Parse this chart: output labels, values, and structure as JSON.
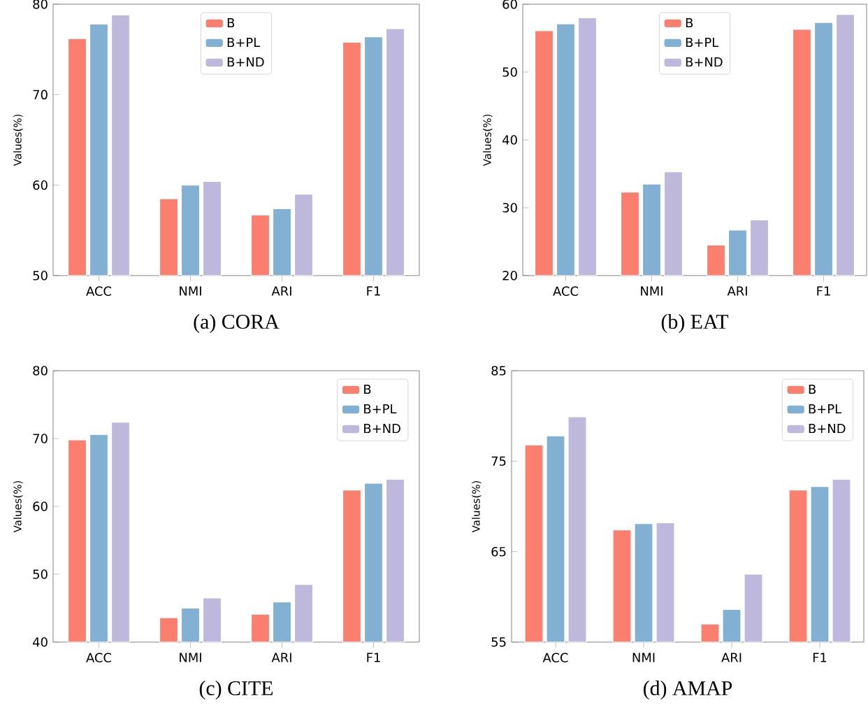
{
  "chart_data": [
    {
      "type": "bar",
      "title": "(a) CORA",
      "ylabel": "Values(%)",
      "categories": [
        "ACC",
        "NMI",
        "ARI",
        "F1"
      ],
      "ylim": [
        50,
        80
      ],
      "yticks": [
        50,
        60,
        70,
        80
      ],
      "legend": "top",
      "series": [
        {
          "name": "B",
          "color": "#fa7f6f",
          "values": [
            76.2,
            58.5,
            56.7,
            75.8
          ]
        },
        {
          "name": "B+PL",
          "color": "#82b0d2",
          "values": [
            77.8,
            60.0,
            57.4,
            76.4
          ]
        },
        {
          "name": "B+ND",
          "color": "#beb8dc",
          "values": [
            78.8,
            60.4,
            59.0,
            77.3
          ]
        }
      ]
    },
    {
      "type": "bar",
      "title": "(b) EAT",
      "ylabel": "Values(%)",
      "categories": [
        "ACC",
        "NMI",
        "ARI",
        "F1"
      ],
      "ylim": [
        20,
        60
      ],
      "yticks": [
        20,
        30,
        40,
        50,
        60
      ],
      "legend": "top",
      "series": [
        {
          "name": "B",
          "color": "#fa7f6f",
          "values": [
            56.1,
            32.3,
            24.5,
            56.3
          ]
        },
        {
          "name": "B+PL",
          "color": "#82b0d2",
          "values": [
            57.1,
            33.5,
            26.7,
            57.3
          ]
        },
        {
          "name": "B+ND",
          "color": "#beb8dc",
          "values": [
            58.0,
            35.3,
            28.2,
            58.5
          ]
        }
      ]
    },
    {
      "type": "bar",
      "title": "(c) CITE",
      "ylabel": "Values(%)",
      "categories": [
        "ACC",
        "NMI",
        "ARI",
        "F1"
      ],
      "ylim": [
        40,
        80
      ],
      "yticks": [
        40,
        50,
        60,
        70,
        80
      ],
      "legend": "top right",
      "series": [
        {
          "name": "B",
          "color": "#fa7f6f",
          "values": [
            69.8,
            43.6,
            44.1,
            62.4
          ]
        },
        {
          "name": "B+PL",
          "color": "#82b0d2",
          "values": [
            70.6,
            45.0,
            45.9,
            63.4
          ]
        },
        {
          "name": "B+ND",
          "color": "#beb8dc",
          "values": [
            72.4,
            46.5,
            48.5,
            64.0
          ]
        }
      ]
    },
    {
      "type": "bar",
      "title": "(d) AMAP",
      "ylabel": "Values(%)",
      "categories": [
        "ACC",
        "NMI",
        "ARI",
        "F1"
      ],
      "ylim": [
        55,
        85
      ],
      "yticks": [
        55,
        65,
        75,
        85
      ],
      "legend": "top right",
      "series": [
        {
          "name": "B",
          "color": "#fa7f6f",
          "values": [
            76.8,
            67.4,
            57.0,
            71.8
          ]
        },
        {
          "name": "B+PL",
          "color": "#82b0d2",
          "values": [
            77.8,
            68.1,
            58.6,
            72.2
          ]
        },
        {
          "name": "B+ND",
          "color": "#beb8dc",
          "values": [
            79.9,
            68.2,
            62.5,
            73.0
          ]
        }
      ]
    }
  ]
}
